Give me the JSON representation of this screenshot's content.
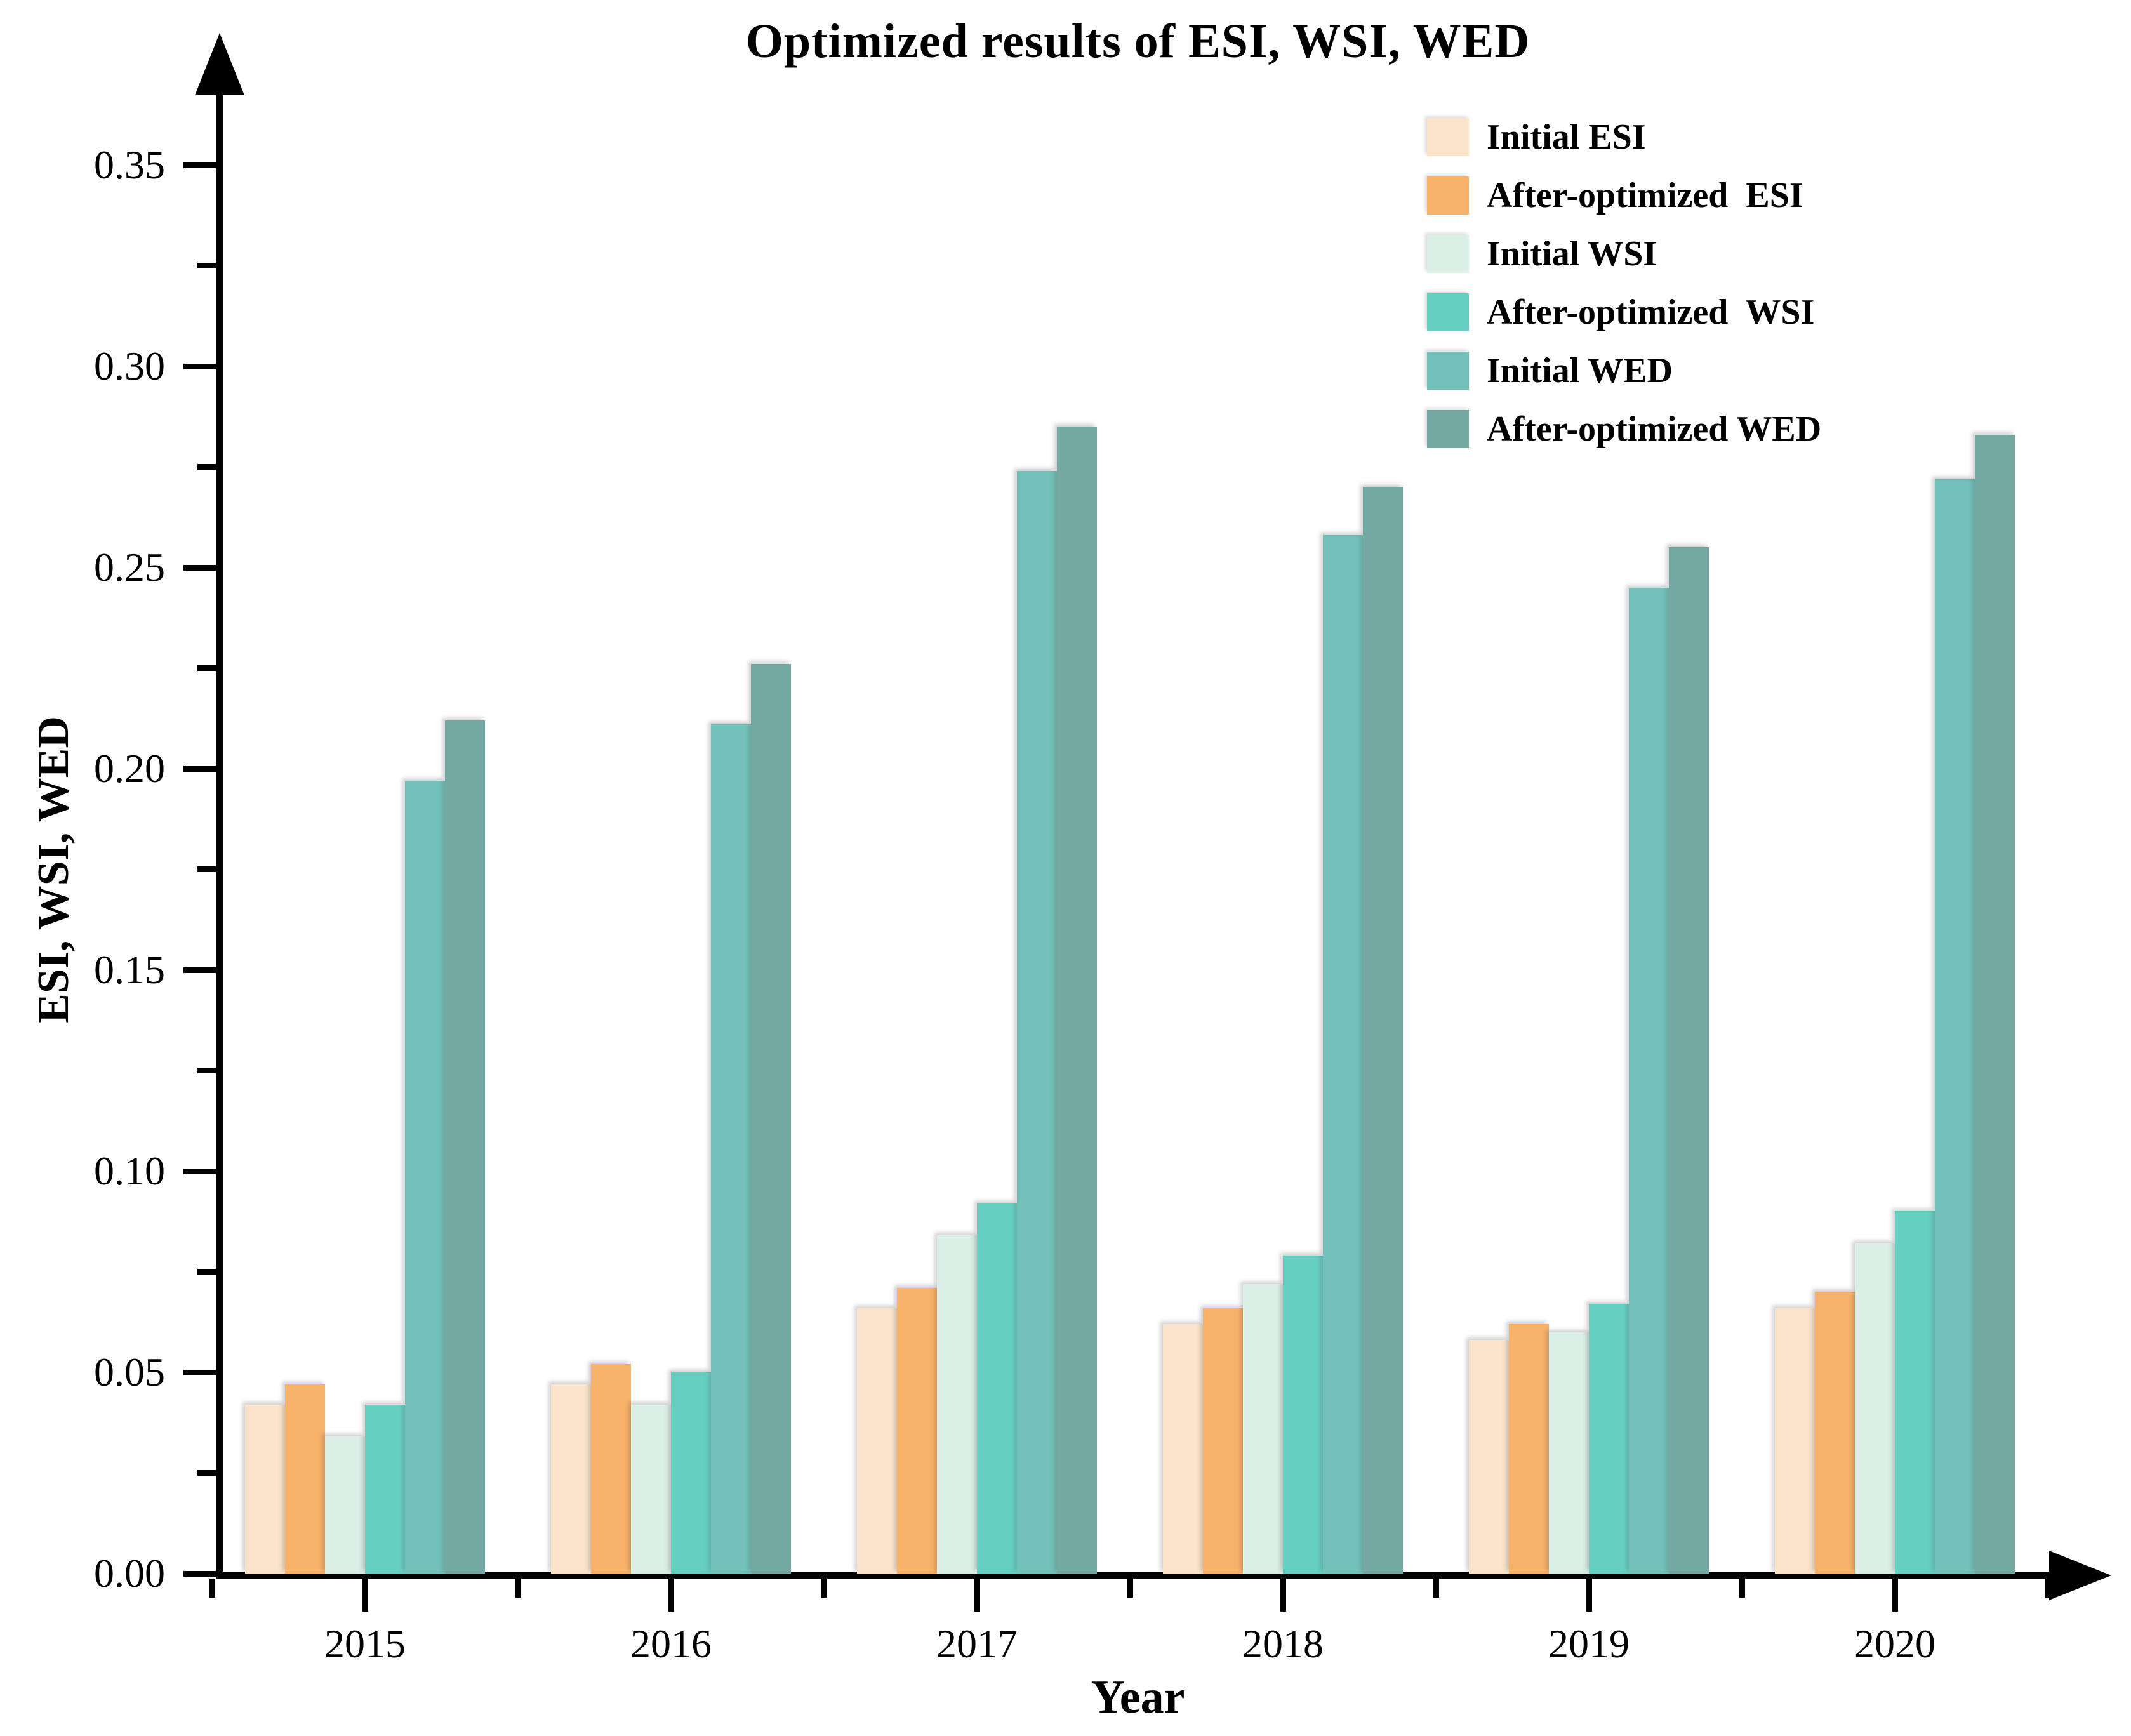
{
  "title": "Optimized results of ESI, WSI, WED",
  "axes": {
    "x_label": "Year",
    "y_label": "ESI, WSI, WED",
    "y_ticks": [
      "0.00",
      "0.05",
      "0.10",
      "0.15",
      "0.20",
      "0.25",
      "0.30",
      "0.35"
    ],
    "x_ticks": [
      "2015",
      "2016",
      "2017",
      "2018",
      "2019",
      "2020"
    ]
  },
  "legend": [
    {
      "label": "Initial ESI",
      "color": "#FBE4C9"
    },
    {
      "label": "After-optimized  ESI",
      "color": "#F8B168"
    },
    {
      "label": "Initial WSI",
      "color": "#DAEFE6"
    },
    {
      "label": "After-optimized  WSI",
      "color": "#65D0C2"
    },
    {
      "label": "Initial WED",
      "color": "#72C1BA"
    },
    {
      "label": "After-optimized WED",
      "color": "#74A9A3"
    }
  ],
  "chart_data": {
    "type": "bar",
    "title": "Optimized results of ESI, WSI, WED",
    "xlabel": "Year",
    "ylabel": "ESI, WSI, WED",
    "ylim": [
      0,
      0.37
    ],
    "grid": false,
    "legend_position": "top-right",
    "y_major_tick_step": 0.05,
    "y_minor_tick_step": 0.025,
    "categories": [
      "2015",
      "2016",
      "2017",
      "2018",
      "2019",
      "2020"
    ],
    "series": [
      {
        "name": "Initial ESI",
        "color": "#FBE4C9",
        "values": [
          0.042,
          0.047,
          0.066,
          0.062,
          0.058,
          0.066
        ]
      },
      {
        "name": "After-optimized  ESI",
        "color": "#F8B168",
        "values": [
          0.047,
          0.052,
          0.071,
          0.066,
          0.062,
          0.07
        ]
      },
      {
        "name": "Initial WSI",
        "color": "#DAEFE6",
        "values": [
          0.034,
          0.042,
          0.084,
          0.072,
          0.06,
          0.082
        ]
      },
      {
        "name": "After-optimized  WSI",
        "color": "#65D0C2",
        "values": [
          0.042,
          0.05,
          0.092,
          0.079,
          0.067,
          0.09
        ]
      },
      {
        "name": "Initial WED",
        "color": "#72C1BA",
        "values": [
          0.197,
          0.211,
          0.274,
          0.258,
          0.245,
          0.272
        ]
      },
      {
        "name": "After-optimized WED",
        "color": "#74A9A3",
        "values": [
          0.212,
          0.226,
          0.285,
          0.27,
          0.255,
          0.283
        ]
      }
    ]
  }
}
